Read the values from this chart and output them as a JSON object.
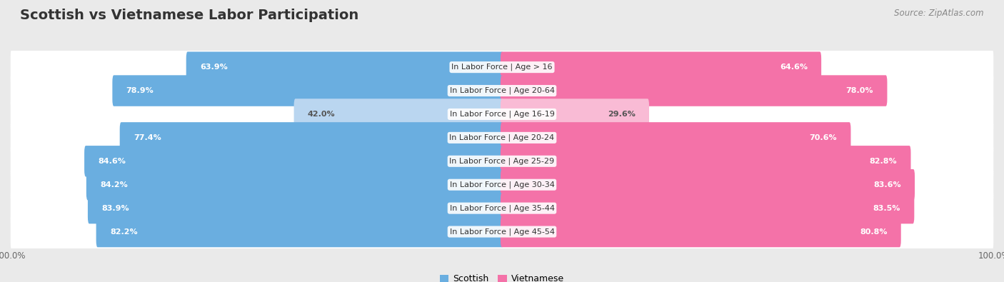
{
  "title": "Scottish vs Vietnamese Labor Participation",
  "source": "Source: ZipAtlas.com",
  "categories": [
    "In Labor Force | Age > 16",
    "In Labor Force | Age 20-64",
    "In Labor Force | Age 16-19",
    "In Labor Force | Age 20-24",
    "In Labor Force | Age 25-29",
    "In Labor Force | Age 30-34",
    "In Labor Force | Age 35-44",
    "In Labor Force | Age 45-54"
  ],
  "scottish_values": [
    63.9,
    78.9,
    42.0,
    77.4,
    84.6,
    84.2,
    83.9,
    82.2
  ],
  "vietnamese_values": [
    64.6,
    78.0,
    29.6,
    70.6,
    82.8,
    83.6,
    83.5,
    80.8
  ],
  "scottish_color": "#6aaee0",
  "scottish_color_light": "#bad6f0",
  "vietnamese_color": "#f472a8",
  "vietnamese_color_light": "#f9bbd5",
  "bg_color": "#eaeaea",
  "row_bg_color": "#f5f5f5",
  "row_bg_alt": "#ebebeb",
  "title_fontsize": 14,
  "label_fontsize": 8,
  "value_fontsize": 8,
  "legend_fontsize": 9,
  "max_value": 100.0
}
